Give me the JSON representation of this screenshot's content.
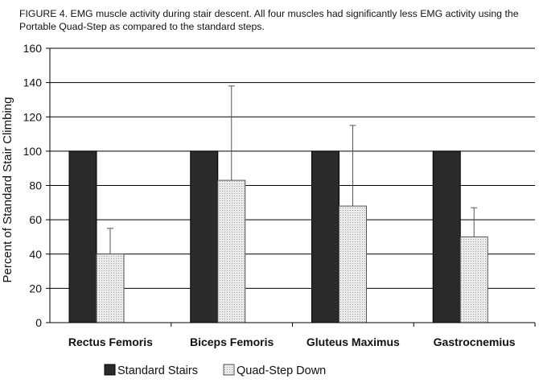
{
  "caption": {
    "line1": "FIGURE 4. EMG muscle activity during stair descent.  All four muscles had significantly less EMG activity using the",
    "line2": "Portable Quad-Step as compared to the standard steps."
  },
  "colors": {
    "standard": "#2a2a2a",
    "quad_fill": "#ececec",
    "quad_stroke": "#555555",
    "grid": "#000000"
  },
  "chart_data": {
    "type": "bar",
    "title": "",
    "ylabel": "Percent of Standard Stair Climbing",
    "xlabel": "",
    "ylim": [
      0,
      160
    ],
    "yticks": [
      0,
      20,
      40,
      60,
      80,
      100,
      120,
      140,
      160
    ],
    "grid": true,
    "legend_position": "bottom",
    "categories": [
      "Rectus Femoris",
      "Biceps Femoris",
      "Gluteus Maximus",
      "Gastrocnemius"
    ],
    "series": [
      {
        "name": "Standard Stairs",
        "values": [
          100,
          100,
          100,
          100
        ]
      },
      {
        "name": "Quad-Step Down",
        "values": [
          40,
          83,
          68,
          50
        ],
        "error_upper": [
          55,
          138,
          115,
          67
        ]
      }
    ]
  }
}
